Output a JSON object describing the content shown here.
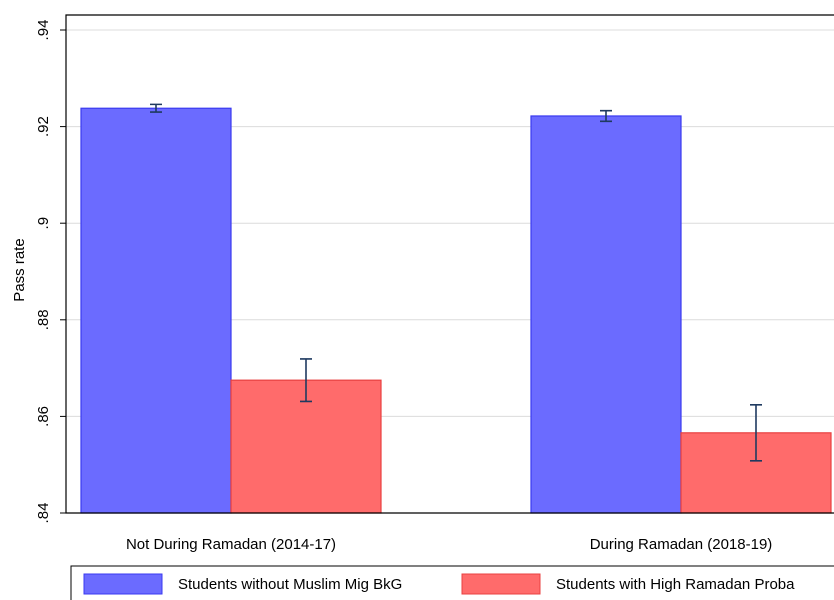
{
  "chart_data": {
    "type": "bar",
    "y_label": "Pass rate",
    "categories": [
      "Not During Ramadan (2014-17)",
      "During Ramadan (2018-19)"
    ],
    "series": [
      {
        "name": "Students without Muslim Mig BkG",
        "color": "#6b6bff",
        "values": [
          0.9238,
          0.9222
        ],
        "errors": [
          0.0008,
          0.0011
        ]
      },
      {
        "name": "Students with High Ramadan Proba",
        "color": "#ff6b6b",
        "values": [
          0.8675,
          0.8566
        ],
        "errors": [
          0.0044,
          0.0058
        ]
      }
    ],
    "ylim": [
      0.84,
      0.94
    ],
    "yticks": [
      {
        "value": 0.84,
        "label": ".84"
      },
      {
        "value": 0.86,
        "label": ".86"
      },
      {
        "value": 0.88,
        "label": ".88"
      },
      {
        "value": 0.9,
        "label": ".9"
      },
      {
        "value": 0.92,
        "label": ".92"
      },
      {
        "value": 0.94,
        "label": ".94"
      }
    ],
    "grid": true,
    "legend": "bottom"
  }
}
